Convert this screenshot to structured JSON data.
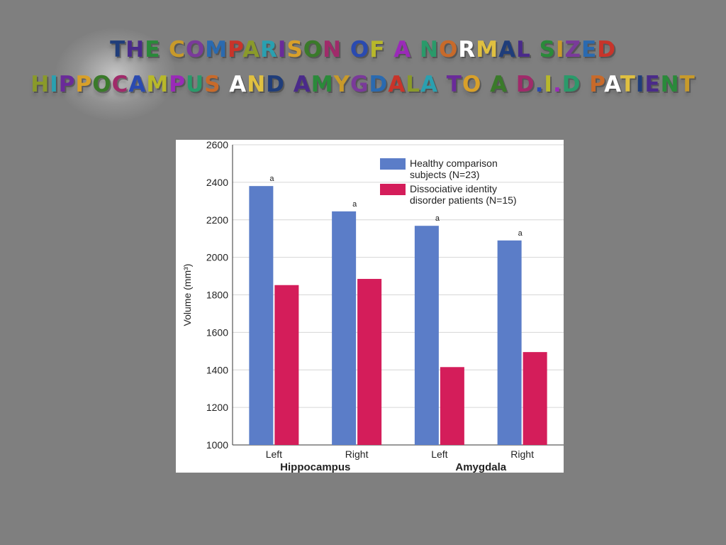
{
  "title": {
    "line1": "THE COMPARISON OF A NORMAL SIZED",
    "line2": "HIPPOCAMPUS AND AMYGDALA TO A D.I.D PATIENT",
    "letter_colors": [
      "#1f3d7a",
      "#4a2a8a",
      "#2a8a3a",
      "#c89a2a",
      "#7a3a9a",
      "#2a6ab0",
      "#c8342a",
      "#8a9a2a",
      "#2aa0b0",
      "#6a2a9a",
      "#d8a02a",
      "#3a7a2a",
      "#a02a6a",
      "#2a4ab0",
      "#b8b82a",
      "#9a2ab8",
      "#2a9a6a",
      "#c86a2a",
      "#ffffff",
      "#e0c040"
    ]
  },
  "chart_data": {
    "type": "bar",
    "categories": [
      "Left",
      "Right",
      "Left",
      "Right"
    ],
    "groups": [
      {
        "label": "Hippocampus",
        "categories": [
          "Left",
          "Right"
        ]
      },
      {
        "label": "Amygdala",
        "categories": [
          "Left",
          "Right"
        ]
      }
    ],
    "series": [
      {
        "name": "Healthy comparison subjects (N=23)",
        "legend_lines": [
          "Healthy comparison",
          "subjects (N=23)"
        ],
        "color": "#5b7dc8",
        "values": [
          2380,
          2245,
          2168,
          2090
        ]
      },
      {
        "name": "Dissociative identity disorder patients (N=15)",
        "legend_lines": [
          "Dissociative identity",
          "disorder patients (N=15)"
        ],
        "color": "#d41d5a",
        "values": [
          1852,
          1885,
          1415,
          1495
        ]
      }
    ],
    "annotations": [
      "a",
      "a",
      "a",
      "a"
    ],
    "ylabel": "Volume (mm³)",
    "ylim": [
      1000,
      2600
    ],
    "yticks": [
      1000,
      1200,
      1400,
      1600,
      1800,
      2000,
      2200,
      2400,
      2600
    ],
    "grid": true,
    "legend": "top-right"
  }
}
